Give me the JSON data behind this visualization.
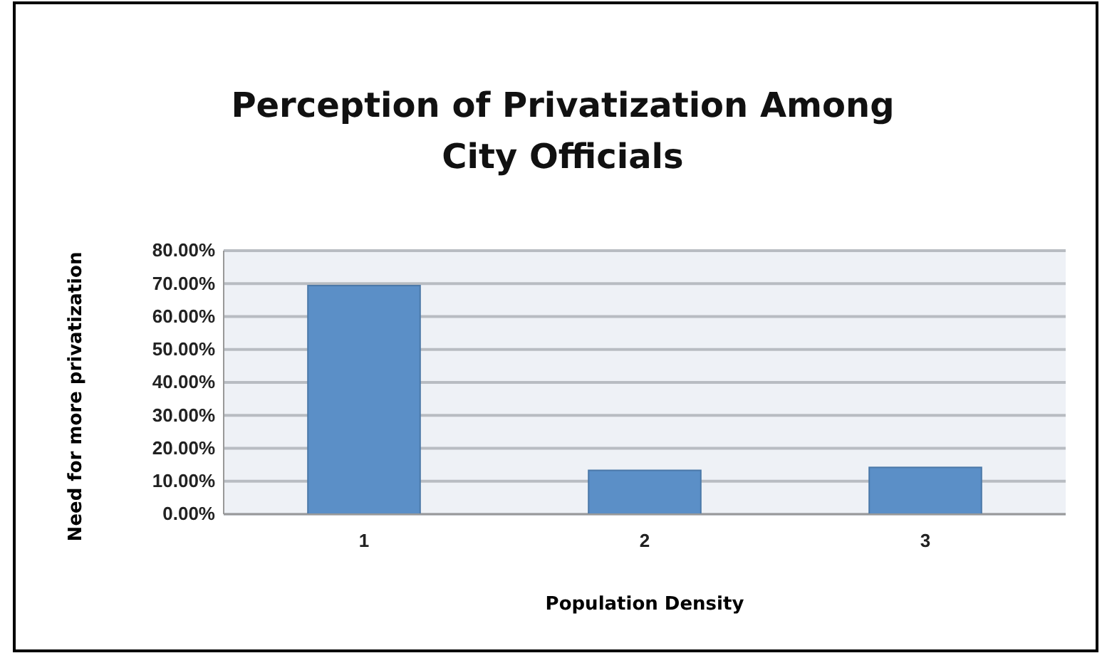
{
  "chart_data": {
    "type": "bar",
    "title": "Perception of Privatization Among City Officials",
    "xlabel": "Population Density",
    "ylabel": "Need for more privatization",
    "categories": [
      "1",
      "2",
      "3"
    ],
    "values": [
      69.4,
      13.3,
      14.2
    ],
    "color": "#5b8fc7",
    "ylim": [
      0,
      80
    ],
    "yticks": [
      {
        "value": 0,
        "label": "0.00%"
      },
      {
        "value": 10,
        "label": "10.00%"
      },
      {
        "value": 20,
        "label": "20.00%"
      },
      {
        "value": 30,
        "label": "30.00%"
      },
      {
        "value": 40,
        "label": "40.00%"
      },
      {
        "value": 50,
        "label": "50.00%"
      },
      {
        "value": 60,
        "label": "60.00%"
      },
      {
        "value": 70,
        "label": "70.00%"
      },
      {
        "value": 80,
        "label": "80.00%"
      }
    ],
    "grid": "y"
  }
}
